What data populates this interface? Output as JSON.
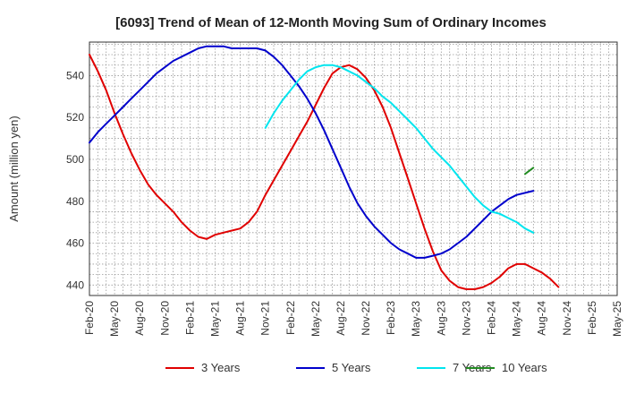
{
  "chart_data": {
    "type": "line",
    "title": "[6093]  Trend of Mean of 12-Month Moving Sum of Ordinary Incomes",
    "xlabel": "",
    "ylabel": "Amount (million yen)",
    "ylim": [
      435,
      556
    ],
    "yticks": [
      440,
      460,
      480,
      500,
      520,
      540
    ],
    "x_tick_labels": [
      "Feb-20",
      "May-20",
      "Aug-20",
      "Nov-20",
      "Feb-21",
      "May-21",
      "Aug-21",
      "Nov-21",
      "Feb-22",
      "May-22",
      "Aug-22",
      "Nov-22",
      "Feb-23",
      "May-23",
      "Aug-23",
      "Nov-23",
      "Feb-24",
      "May-24",
      "Aug-24",
      "Nov-24",
      "Feb-25",
      "May-25"
    ],
    "x_range_months": [
      0,
      63
    ],
    "grid": true,
    "legend_position": "bottom",
    "series": [
      {
        "name": "3 Years",
        "color": "#e00000",
        "points": [
          [
            0,
            550
          ],
          [
            1,
            542
          ],
          [
            2,
            533
          ],
          [
            3,
            522
          ],
          [
            4,
            512
          ],
          [
            5,
            503
          ],
          [
            6,
            495
          ],
          [
            7,
            488
          ],
          [
            8,
            483
          ],
          [
            9,
            479
          ],
          [
            10,
            475
          ],
          [
            11,
            470
          ],
          [
            12,
            466
          ],
          [
            13,
            463
          ],
          [
            14,
            462
          ],
          [
            15,
            464
          ],
          [
            16,
            465
          ],
          [
            17,
            466
          ],
          [
            18,
            467
          ],
          [
            19,
            470
          ],
          [
            20,
            475
          ],
          [
            21,
            483
          ],
          [
            22,
            490
          ],
          [
            23,
            497
          ],
          [
            24,
            504
          ],
          [
            25,
            511
          ],
          [
            26,
            518
          ],
          [
            27,
            526
          ],
          [
            28,
            534
          ],
          [
            29,
            541
          ],
          [
            30,
            544
          ],
          [
            31,
            545
          ],
          [
            32,
            543
          ],
          [
            33,
            539
          ],
          [
            34,
            533
          ],
          [
            35,
            525
          ],
          [
            36,
            515
          ],
          [
            37,
            503
          ],
          [
            38,
            491
          ],
          [
            39,
            479
          ],
          [
            40,
            467
          ],
          [
            41,
            456
          ],
          [
            42,
            447
          ],
          [
            43,
            442
          ],
          [
            44,
            439
          ],
          [
            45,
            438
          ],
          [
            46,
            438
          ],
          [
            47,
            439
          ],
          [
            48,
            441
          ],
          [
            49,
            444
          ],
          [
            50,
            448
          ],
          [
            51,
            450
          ],
          [
            52,
            450
          ],
          [
            53,
            448
          ],
          [
            54,
            446
          ],
          [
            55,
            443
          ],
          [
            56,
            439
          ]
        ]
      },
      {
        "name": "5 Years",
        "color": "#0000cc",
        "points": [
          [
            0,
            508
          ],
          [
            1,
            513
          ],
          [
            2,
            517
          ],
          [
            3,
            521
          ],
          [
            4,
            525
          ],
          [
            5,
            529
          ],
          [
            6,
            533
          ],
          [
            7,
            537
          ],
          [
            8,
            541
          ],
          [
            9,
            544
          ],
          [
            10,
            547
          ],
          [
            11,
            549
          ],
          [
            12,
            551
          ],
          [
            13,
            553
          ],
          [
            14,
            554
          ],
          [
            15,
            554
          ],
          [
            16,
            554
          ],
          [
            17,
            553
          ],
          [
            18,
            553
          ],
          [
            19,
            553
          ],
          [
            20,
            553
          ],
          [
            21,
            552
          ],
          [
            22,
            549
          ],
          [
            23,
            545
          ],
          [
            24,
            540
          ],
          [
            25,
            535
          ],
          [
            26,
            529
          ],
          [
            27,
            522
          ],
          [
            28,
            514
          ],
          [
            29,
            505
          ],
          [
            30,
            496
          ],
          [
            31,
            487
          ],
          [
            32,
            479
          ],
          [
            33,
            473
          ],
          [
            34,
            468
          ],
          [
            35,
            464
          ],
          [
            36,
            460
          ],
          [
            37,
            457
          ],
          [
            38,
            455
          ],
          [
            39,
            453
          ],
          [
            40,
            453
          ],
          [
            41,
            454
          ],
          [
            42,
            455
          ],
          [
            43,
            457
          ],
          [
            44,
            460
          ],
          [
            45,
            463
          ],
          [
            46,
            467
          ],
          [
            47,
            471
          ],
          [
            48,
            475
          ],
          [
            49,
            478
          ],
          [
            50,
            481
          ],
          [
            51,
            483
          ],
          [
            52,
            484
          ],
          [
            53,
            485
          ]
        ]
      },
      {
        "name": "7 Years",
        "color": "#00e5ee",
        "points": [
          [
            21,
            515
          ],
          [
            22,
            522
          ],
          [
            23,
            528
          ],
          [
            24,
            533
          ],
          [
            25,
            538
          ],
          [
            26,
            542
          ],
          [
            27,
            544
          ],
          [
            28,
            545
          ],
          [
            29,
            545
          ],
          [
            30,
            544
          ],
          [
            31,
            542
          ],
          [
            32,
            540
          ],
          [
            33,
            537
          ],
          [
            34,
            534
          ],
          [
            35,
            530
          ],
          [
            36,
            527
          ],
          [
            37,
            523
          ],
          [
            38,
            519
          ],
          [
            39,
            515
          ],
          [
            40,
            510
          ],
          [
            41,
            505
          ],
          [
            42,
            501
          ],
          [
            43,
            497
          ],
          [
            44,
            492
          ],
          [
            45,
            487
          ],
          [
            46,
            482
          ],
          [
            47,
            478
          ],
          [
            48,
            475
          ],
          [
            49,
            474
          ],
          [
            50,
            472
          ],
          [
            51,
            470
          ],
          [
            52,
            467
          ],
          [
            53,
            465
          ]
        ]
      },
      {
        "name": "10 Years",
        "color": "#228b22",
        "points": [
          [
            52,
            493
          ],
          [
            53,
            496
          ]
        ]
      }
    ]
  }
}
